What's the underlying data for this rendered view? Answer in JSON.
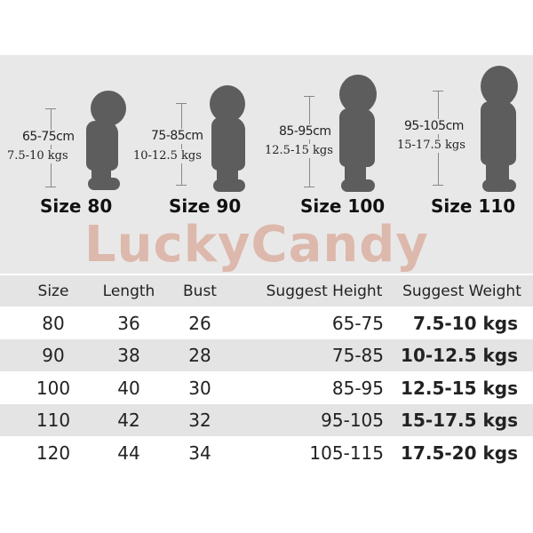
{
  "figures": [
    {
      "size": "Size 80",
      "height": "65-75cm",
      "weight": "7.5-10 kgs"
    },
    {
      "size": "Size 90",
      "height": "75-85cm",
      "weight": "10-12.5 kgs"
    },
    {
      "size": "Size 100",
      "height": "85-95cm",
      "weight": "12.5-15 kgs"
    },
    {
      "size": "Size 110",
      "height": "95-105cm",
      "weight": "15-17.5 kgs"
    }
  ],
  "watermark": "LuckyCandy",
  "table": {
    "headers": [
      "Size",
      "Length",
      "Bust",
      "Suggest Height",
      "Suggest Weight"
    ],
    "rows": [
      [
        "80",
        "36",
        "26",
        "65-75",
        "7.5-10 kgs"
      ],
      [
        "90",
        "38",
        "28",
        "75-85",
        "10-12.5 kgs"
      ],
      [
        "100",
        "40",
        "30",
        "85-95",
        "12.5-15 kgs"
      ],
      [
        "110",
        "42",
        "32",
        "95-105",
        "15-17.5 kgs"
      ],
      [
        "120",
        "44",
        "34",
        "105-115",
        "17.5-20 kgs"
      ]
    ]
  },
  "colors": {
    "panel": "#e9e8e8",
    "silhouette": "#5d5d5d",
    "watermark": "#d9a999",
    "stripe": "#e4e4e4"
  }
}
